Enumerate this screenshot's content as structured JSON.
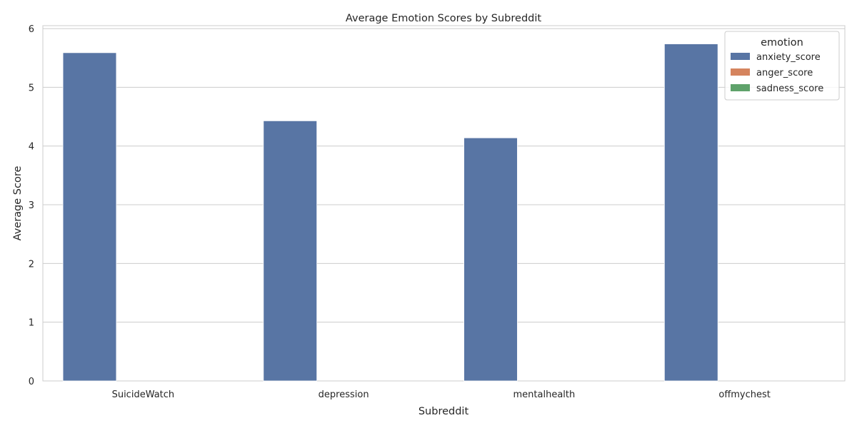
{
  "chart_data": {
    "type": "bar",
    "title": "Average Emotion Scores by Subreddit",
    "xlabel": "Subreddit",
    "ylabel": "Average Score",
    "categories": [
      "SuicideWatch",
      "depression",
      "mentalhealth",
      "offmychest"
    ],
    "series": [
      {
        "name": "anxiety_score",
        "values": [
          5.59,
          4.43,
          4.14,
          5.74
        ],
        "color": "#5875a4"
      },
      {
        "name": "anger_score",
        "values": [
          0,
          0,
          0,
          0
        ],
        "color": "#d5845e"
      },
      {
        "name": "sadness_score",
        "values": [
          0,
          0,
          0,
          0
        ],
        "color": "#5fa26b"
      }
    ],
    "ylim": [
      0,
      6.05
    ],
    "yticks": [
      "0",
      "1",
      "2",
      "3",
      "4",
      "5",
      "6"
    ],
    "grid": true,
    "legend": {
      "title": "emotion",
      "placement": "top-right"
    }
  }
}
